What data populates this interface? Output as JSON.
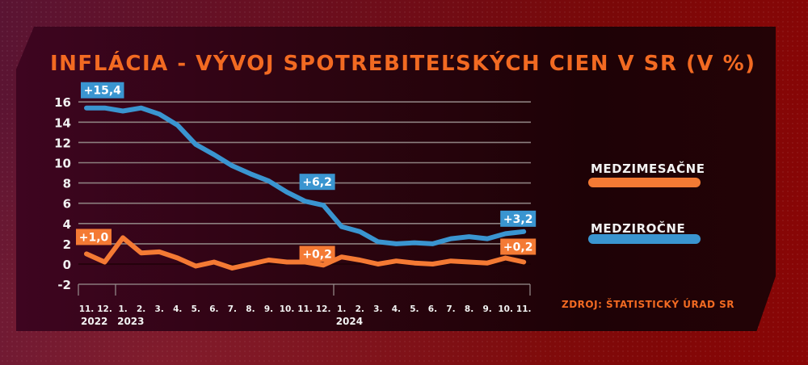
{
  "title": "INFLÁCIA - VÝVOJ SPOTREBITEĽSKÝCH CIEN V SR (V %)",
  "source": "ZDROJ: ŠTATISTICKÝ ÚRAD SR",
  "legend": [
    {
      "label": "MEDZIMESAČNE",
      "color": "#f47a34"
    },
    {
      "label": "MEDZIROČNE",
      "color": "#3a95d0"
    }
  ],
  "colors": {
    "accent_title": "#f26a22",
    "mom": "#f47a34",
    "yoy": "#3a95d0",
    "grid": "#8a7a7a",
    "text": "#f2f2f2"
  },
  "chart_data": {
    "type": "line",
    "title": "INFLÁCIA - VÝVOJ SPOTREBITEĽSKÝCH CIEN V SR (V %)",
    "xlabel": "",
    "ylabel": "",
    "ylim": [
      -2,
      16
    ],
    "yticks": [
      16,
      14,
      12,
      10,
      8,
      6,
      4,
      2,
      0,
      -2
    ],
    "grid": true,
    "legend_position": "right",
    "categories": [
      "11.",
      "12.",
      "1.",
      "2.",
      "3.",
      "4.",
      "5.",
      "6.",
      "7.",
      "8.",
      "9.",
      "10.",
      "11.",
      "12.",
      "1.",
      "2.",
      "3.",
      "4.",
      "5.",
      "6.",
      "7.",
      "8.",
      "9.",
      "10.",
      "11."
    ],
    "year_labels": [
      {
        "label": "2022",
        "index": 0
      },
      {
        "label": "2023",
        "index": 2
      },
      {
        "label": "2024",
        "index": 14
      }
    ],
    "series": [
      {
        "name": "MEDZIROČNE",
        "color": "#3a95d0",
        "values": [
          15.4,
          15.4,
          15.1,
          15.4,
          14.8,
          13.7,
          11.8,
          10.8,
          9.7,
          8.9,
          8.2,
          7.1,
          6.2,
          5.8,
          3.7,
          3.2,
          2.2,
          2.0,
          2.1,
          2.0,
          2.5,
          2.7,
          2.5,
          3.0,
          3.2
        ]
      },
      {
        "name": "MEDZIMESAČNE",
        "color": "#f47a34",
        "values": [
          1.0,
          0.2,
          2.6,
          1.1,
          1.2,
          0.6,
          -0.2,
          0.2,
          -0.4,
          0.0,
          0.4,
          0.2,
          0.2,
          -0.1,
          0.7,
          0.4,
          0.0,
          0.3,
          0.1,
          0.0,
          0.3,
          0.2,
          0.1,
          0.6,
          0.2
        ]
      }
    ],
    "annotations": [
      {
        "series": "MEDZIROČNE",
        "index": 0,
        "text": "+15,4"
      },
      {
        "series": "MEDZIROČNE",
        "index": 12,
        "text": "+6,2"
      },
      {
        "series": "MEDZIROČNE",
        "index": 24,
        "text": "+3,2"
      },
      {
        "series": "MEDZIMESAČNE",
        "index": 0,
        "text": "+1,0"
      },
      {
        "series": "MEDZIMESAČNE",
        "index": 12,
        "text": "+0,2"
      },
      {
        "series": "MEDZIMESAČNE",
        "index": 24,
        "text": "+0,2"
      }
    ]
  }
}
